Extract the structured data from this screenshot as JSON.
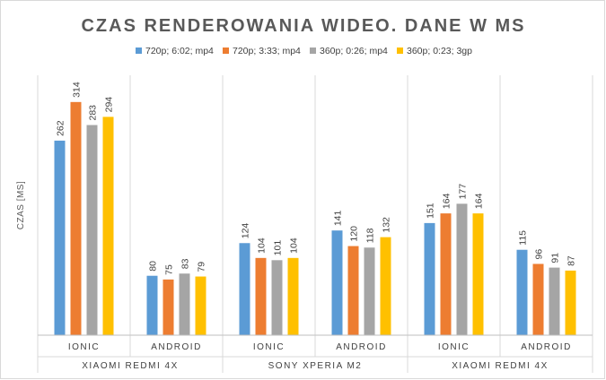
{
  "chart_data": {
    "type": "bar",
    "title": "CZAS RENDEROWANIA WIDEO. DANE W MS",
    "ylabel": "CZAS [MS]",
    "xlabel": "",
    "ylim": [
      0,
      350
    ],
    "grid": false,
    "legend_position": "top",
    "groups": [
      {
        "name": "XIAOMI REDMI 4X",
        "categories": [
          "IONIC",
          "ANDROID"
        ]
      },
      {
        "name": "SONY XPERIA M2",
        "categories": [
          "IONIC",
          "ANDROID"
        ]
      },
      {
        "name": "XIAOMI REDMI 4X",
        "categories": [
          "IONIC",
          "ANDROID"
        ]
      }
    ],
    "categories": [
      "IONIC",
      "ANDROID",
      "IONIC",
      "ANDROID",
      "IONIC",
      "ANDROID"
    ],
    "series": [
      {
        "name": "720p; 6:02; mp4",
        "color": "#5b9bd5",
        "values": [
          262,
          80,
          124,
          141,
          151,
          115
        ]
      },
      {
        "name": "720p; 3:33; mp4",
        "color": "#ed7d31",
        "values": [
          314,
          75,
          104,
          120,
          164,
          96
        ]
      },
      {
        "name": "360p; 0:26; mp4",
        "color": "#a5a5a5",
        "values": [
          283,
          83,
          101,
          118,
          177,
          91
        ]
      },
      {
        "name": "360p; 0:23; 3gp",
        "color": "#ffc000",
        "values": [
          294,
          79,
          104,
          132,
          164,
          87
        ]
      }
    ]
  }
}
